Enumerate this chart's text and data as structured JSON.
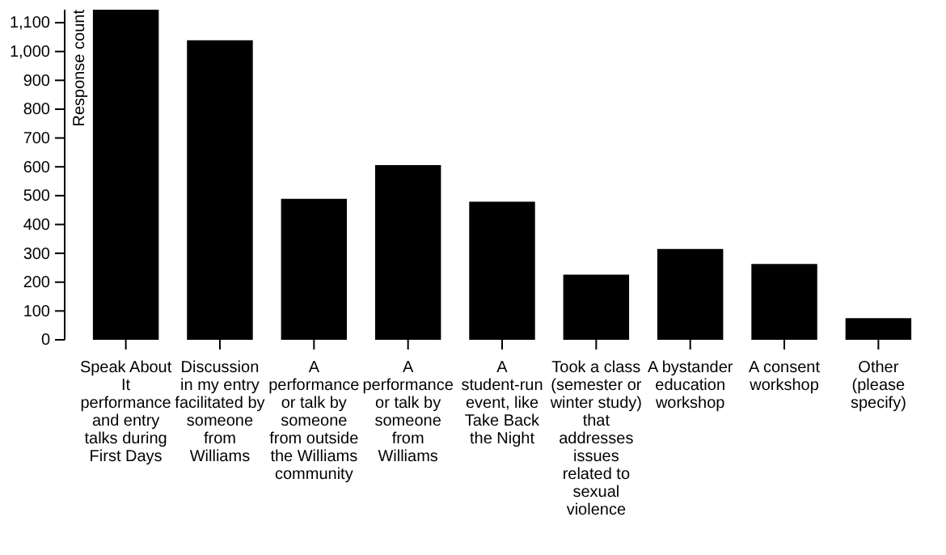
{
  "chart_data": {
    "type": "bar",
    "ylabel": "Response count",
    "categories": [
      "Speak About It performance and entry talks during First Days",
      "Discussion in my entry facilitated by someone from Williams",
      "A performance or talk by someone from outside the Williams community",
      "A performance or talk by someone from Williams",
      "A student-run event, like Take Back the Night",
      "Took a class (semester or winter study) that addresses issues related to sexual violence",
      "A bystander education workshop",
      "A consent workshop",
      "Other (please specify)"
    ],
    "values": [
      1145,
      1039,
      489,
      606,
      479,
      226,
      315,
      263,
      75
    ],
    "color": "#000000",
    "ylim": [
      0,
      1145
    ],
    "yticks": [
      0,
      100,
      200,
      300,
      400,
      500,
      600,
      700,
      800,
      900,
      {
        "value": 1000,
        "label": "1,000"
      },
      {
        "value": 1100,
        "label": "1,100"
      }
    ],
    "grid": false
  }
}
